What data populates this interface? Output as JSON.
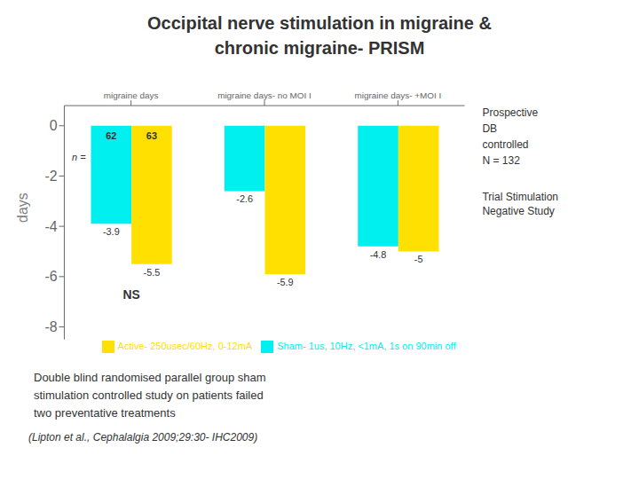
{
  "chart_data": {
    "type": "bar",
    "title": "Occipital nerve stimulation in migraine &",
    "subtitle": "chronic migraine- PRISM",
    "categories": [
      "migraine days",
      "migraine days- no MOI I",
      "migraine days- +MOI I"
    ],
    "series": [
      {
        "name": "Sham- 1us, 10Hz, <1mA, 1s on 90min off",
        "color": "#00EFEF",
        "values": [
          -3.9,
          -2.6,
          -4.8
        ],
        "n": 62
      },
      {
        "name": "Active- 250usec/60Hz, 0-12mA",
        "color": "#FFE000",
        "values": [
          -5.5,
          -5.9,
          -5.0
        ],
        "n": 63
      }
    ],
    "ylabel": "days",
    "ylim": [
      -8.5,
      0.8
    ],
    "yticks": [
      0,
      -2,
      -4,
      -6,
      -8
    ],
    "grid": false,
    "legend": "lower right",
    "data_labels": true,
    "annotations": [
      "n =",
      "NS",
      "Prospective\nDB\ncontrolled\nN = 132",
      "Trial Stimulation\nNegative Study",
      "Double blind randomised parallel group sham\nstimulation controlled study on patients failed\ntwo preventative treatments",
      "(Lipton et al., Cephalalgia 2009;29:30- IHC2009)"
    ]
  }
}
